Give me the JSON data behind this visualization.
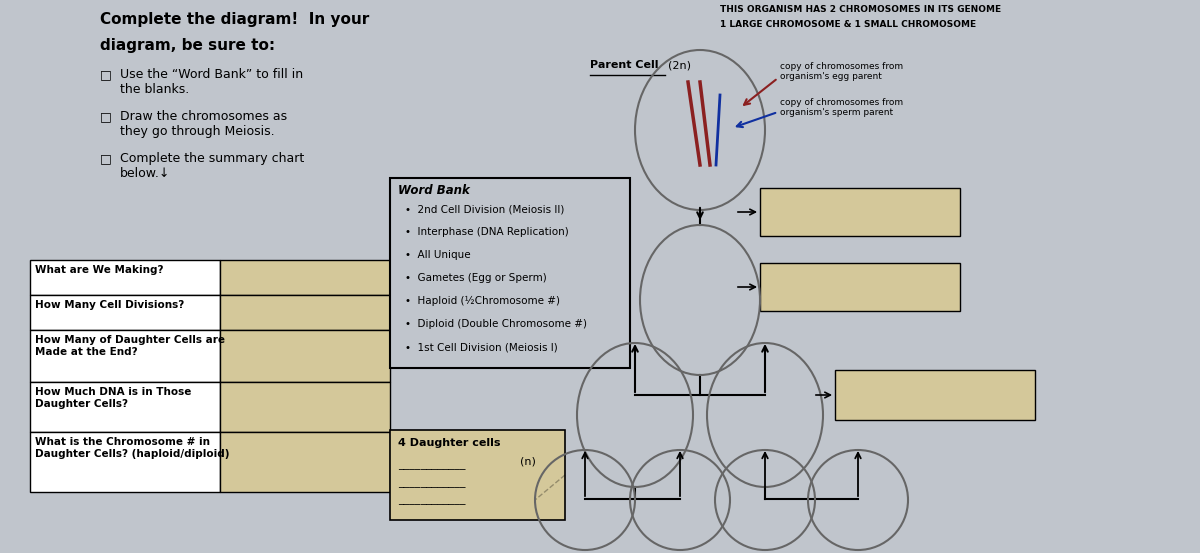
{
  "bg_color": "#c0c5cc",
  "table_bg": "#d4c89a",
  "cell_outline": "#666666",
  "box_fill": "#d4c89a",
  "organism_text_line1": "THIS ORGANISM HAS 2 CHROMOSOMES IN ITS GENOME",
  "organism_text_line2": "1 LARGE CHROMOSOME & 1 SMALL CHROMOSOME",
  "egg_label": "copy of chromosomes from\norganism's egg parent",
  "sperm_label": "copy of chromosomes from\norganism's sperm parent",
  "parent_cell_label": "Parent Cell",
  "parent_cell_2n": "(2n)",
  "four_daughter_label": "4 Daughter cells",
  "four_daughter_n": "(n)",
  "word_bank_title": "Word Bank",
  "word_bank_items": [
    "2nd Cell Division (Meiosis II)",
    "Interphase (DNA Replication)",
    "All Unique",
    "Gametes (Egg or Sperm)",
    "Haploid (½Chromosome #)",
    "Diploid (Double Chromosome #)",
    "1st Cell Division (Meiosis I)"
  ],
  "table_rows": [
    "What are We Making?",
    "How Many Cell Divisions?",
    "How Many of Daughter Cells are\nMade at the End?",
    "How Much DNA is in Those\nDaughter Cells?",
    "What is the Chromosome # in\nDaughter Cells? (haploid/diploid)"
  ],
  "title_line1": "Complete the diagram!  In your",
  "title_line2": "diagram, be sure to:",
  "bullet1": "Use the “Word Bank” to fill in\nthe blanks.",
  "bullet2": "Draw the chromosomes as\nthey go through Meiosis.",
  "bullet3": "Complete the summary chart\nbelow.↓"
}
